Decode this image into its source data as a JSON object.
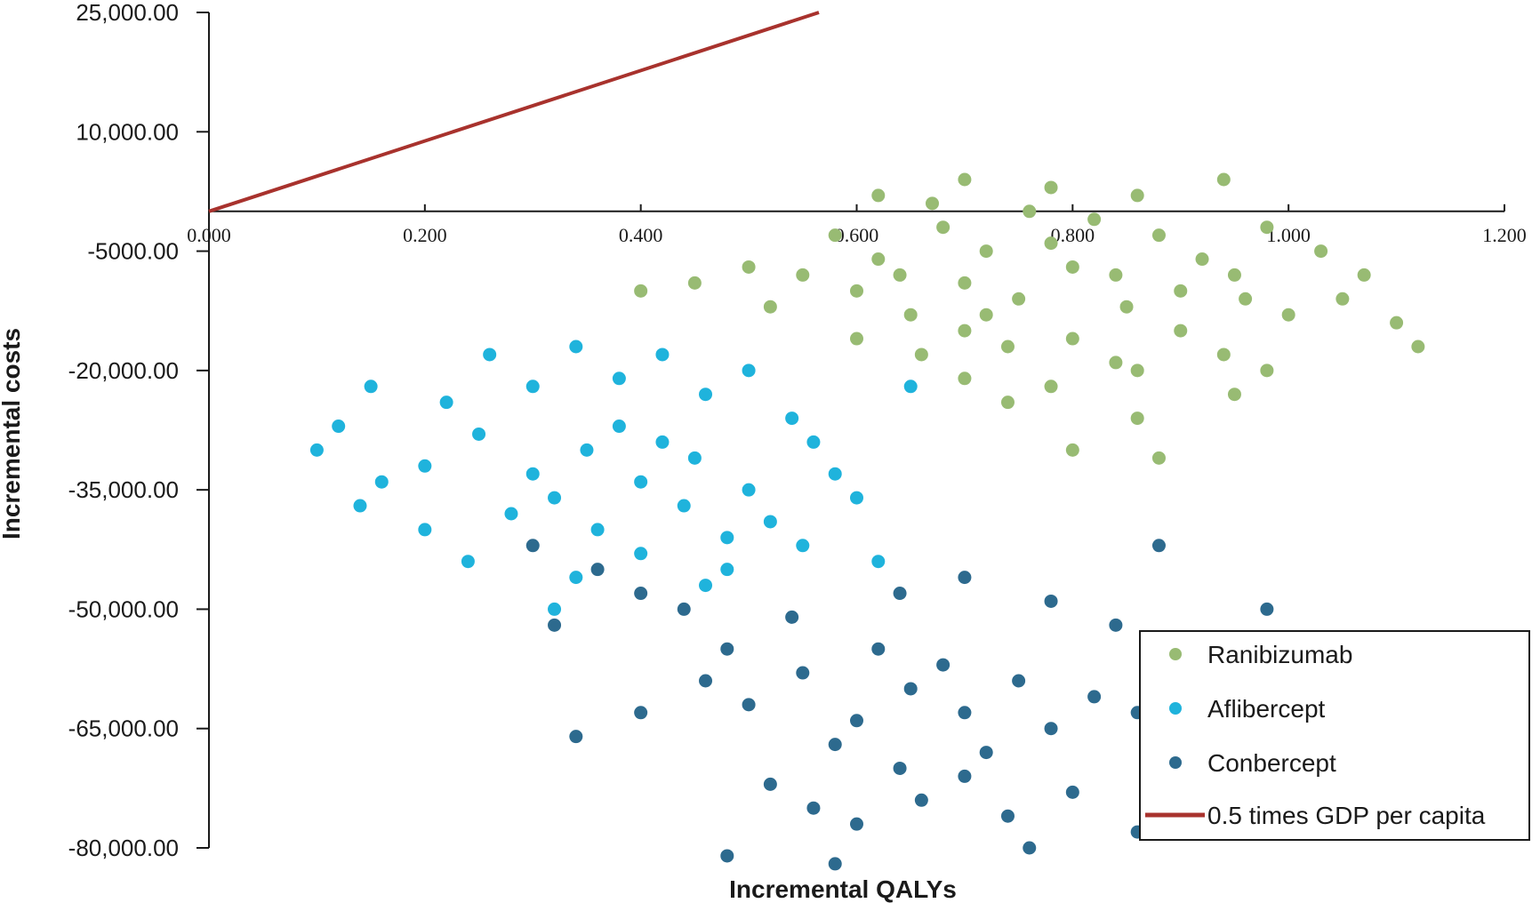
{
  "chart_data": {
    "type": "scatter",
    "title": "",
    "xlabel": "Incremental QALYs",
    "ylabel": "Incremental costs",
    "xlim": [
      0,
      1.2
    ],
    "ylim": [
      -80000,
      25000
    ],
    "x_ticks": [
      0,
      0.2,
      0.4,
      0.6,
      0.8,
      1.0,
      1.2
    ],
    "x_tick_labels": [
      "0.000",
      "0.200",
      "0.400",
      "0.600",
      "0.800",
      "1.000",
      "1.200"
    ],
    "y_ticks": [
      25000,
      10000,
      -5000,
      -20000,
      -35000,
      -50000,
      -65000,
      -80000
    ],
    "y_tick_labels": [
      "25,000.00",
      "10,000.00",
      "-5000.00",
      "-20,000.00",
      "-35,000.00",
      "-50,000.00",
      "-65,000.00",
      "-80,000.00"
    ],
    "grid": false,
    "legend_position": "bottom-right",
    "threshold_line": {
      "name": "0.5 times GDP per capita",
      "color": "#a8322d",
      "x": [
        0,
        0.565
      ],
      "y": [
        0,
        25000
      ]
    },
    "series": [
      {
        "name": "Ranibizumab",
        "color": "#98bb73",
        "points": [
          [
            0.52,
            -12000
          ],
          [
            0.55,
            -8000
          ],
          [
            0.6,
            -10000
          ],
          [
            0.65,
            -13000
          ],
          [
            0.7,
            -9000
          ],
          [
            0.75,
            -11000
          ],
          [
            0.8,
            -7000
          ],
          [
            0.85,
            -12000
          ],
          [
            0.9,
            -10000
          ],
          [
            0.95,
            -8000
          ],
          [
            1.0,
            -13000
          ],
          [
            1.05,
            -11000
          ],
          [
            0.58,
            -3000
          ],
          [
            0.62,
            -6000
          ],
          [
            0.68,
            -2000
          ],
          [
            0.72,
            -5000
          ],
          [
            0.78,
            -4000
          ],
          [
            0.82,
            -1000
          ],
          [
            0.88,
            -3000
          ],
          [
            0.92,
            -6000
          ],
          [
            0.98,
            -2000
          ],
          [
            1.03,
            -5000
          ],
          [
            0.6,
            -16000
          ],
          [
            0.66,
            -18000
          ],
          [
            0.7,
            -15000
          ],
          [
            0.74,
            -17000
          ],
          [
            0.8,
            -16000
          ],
          [
            0.84,
            -19000
          ],
          [
            0.9,
            -15000
          ],
          [
            0.94,
            -18000
          ],
          [
            0.7,
            -21000
          ],
          [
            0.78,
            -22000
          ],
          [
            0.86,
            -20000
          ],
          [
            0.95,
            -23000
          ],
          [
            0.62,
            2000
          ],
          [
            0.7,
            4000
          ],
          [
            0.78,
            3000
          ],
          [
            0.86,
            2000
          ],
          [
            0.94,
            4000
          ],
          [
            0.5,
            -7000
          ],
          [
            0.45,
            -9000
          ],
          [
            0.4,
            -10000
          ],
          [
            1.1,
            -14000
          ],
          [
            1.12,
            -17000
          ],
          [
            0.98,
            -20000
          ],
          [
            0.74,
            -24000
          ],
          [
            0.86,
            -26000
          ],
          [
            0.8,
            -30000
          ],
          [
            0.88,
            -31000
          ],
          [
            0.67,
            1000
          ],
          [
            0.76,
            0
          ],
          [
            0.84,
            -8000
          ],
          [
            0.72,
            -13000
          ],
          [
            0.64,
            -8000
          ],
          [
            0.96,
            -11000
          ],
          [
            1.07,
            -8000
          ]
        ]
      },
      {
        "name": "Aflibercept",
        "color": "#1fb3dc",
        "points": [
          [
            0.2,
            -32000
          ],
          [
            0.25,
            -28000
          ],
          [
            0.3,
            -33000
          ],
          [
            0.35,
            -30000
          ],
          [
            0.4,
            -34000
          ],
          [
            0.45,
            -31000
          ],
          [
            0.5,
            -35000
          ],
          [
            0.38,
            -27000
          ],
          [
            0.42,
            -29000
          ],
          [
            0.32,
            -36000
          ],
          [
            0.28,
            -38000
          ],
          [
            0.36,
            -40000
          ],
          [
            0.44,
            -37000
          ],
          [
            0.48,
            -41000
          ],
          [
            0.52,
            -39000
          ],
          [
            0.22,
            -24000
          ],
          [
            0.3,
            -22000
          ],
          [
            0.38,
            -21000
          ],
          [
            0.46,
            -23000
          ],
          [
            0.54,
            -26000
          ],
          [
            0.15,
            -22000
          ],
          [
            0.12,
            -27000
          ],
          [
            0.1,
            -30000
          ],
          [
            0.16,
            -34000
          ],
          [
            0.14,
            -37000
          ],
          [
            0.2,
            -40000
          ],
          [
            0.24,
            -44000
          ],
          [
            0.34,
            -46000
          ],
          [
            0.4,
            -43000
          ],
          [
            0.46,
            -47000
          ],
          [
            0.32,
            -50000
          ],
          [
            0.5,
            -20000
          ],
          [
            0.42,
            -18000
          ],
          [
            0.34,
            -17000
          ],
          [
            0.26,
            -18000
          ],
          [
            0.56,
            -29000
          ],
          [
            0.58,
            -33000
          ],
          [
            0.6,
            -36000
          ],
          [
            0.55,
            -42000
          ],
          [
            0.62,
            -44000
          ],
          [
            0.65,
            -22000
          ],
          [
            0.48,
            -45000
          ]
        ]
      },
      {
        "name": "Conbercept",
        "color": "#2d6a8e",
        "points": [
          [
            0.5,
            -62000
          ],
          [
            0.55,
            -58000
          ],
          [
            0.6,
            -64000
          ],
          [
            0.65,
            -60000
          ],
          [
            0.7,
            -63000
          ],
          [
            0.75,
            -59000
          ],
          [
            0.62,
            -55000
          ],
          [
            0.68,
            -57000
          ],
          [
            0.58,
            -67000
          ],
          [
            0.64,
            -70000
          ],
          [
            0.72,
            -68000
          ],
          [
            0.78,
            -65000
          ],
          [
            0.82,
            -61000
          ],
          [
            0.86,
            -63000
          ],
          [
            0.48,
            -55000
          ],
          [
            0.44,
            -50000
          ],
          [
            0.4,
            -48000
          ],
          [
            0.36,
            -45000
          ],
          [
            0.3,
            -42000
          ],
          [
            0.52,
            -72000
          ],
          [
            0.56,
            -75000
          ],
          [
            0.6,
            -77000
          ],
          [
            0.66,
            -74000
          ],
          [
            0.7,
            -71000
          ],
          [
            0.74,
            -76000
          ],
          [
            0.8,
            -73000
          ],
          [
            0.88,
            -70000
          ],
          [
            0.92,
            -67000
          ],
          [
            0.96,
            -60000
          ],
          [
            1.0,
            -64000
          ],
          [
            1.04,
            -57000
          ],
          [
            0.9,
            -54000
          ],
          [
            0.84,
            -52000
          ],
          [
            0.78,
            -49000
          ],
          [
            0.7,
            -46000
          ],
          [
            0.64,
            -48000
          ],
          [
            0.54,
            -51000
          ],
          [
            0.46,
            -59000
          ],
          [
            0.4,
            -63000
          ],
          [
            0.34,
            -66000
          ],
          [
            0.32,
            -52000
          ],
          [
            0.58,
            -82000
          ],
          [
            0.48,
            -81000
          ],
          [
            0.76,
            -80000
          ],
          [
            0.86,
            -78000
          ],
          [
            1.08,
            -64000
          ],
          [
            0.98,
            -50000
          ],
          [
            0.88,
            -42000
          ]
        ]
      }
    ]
  }
}
